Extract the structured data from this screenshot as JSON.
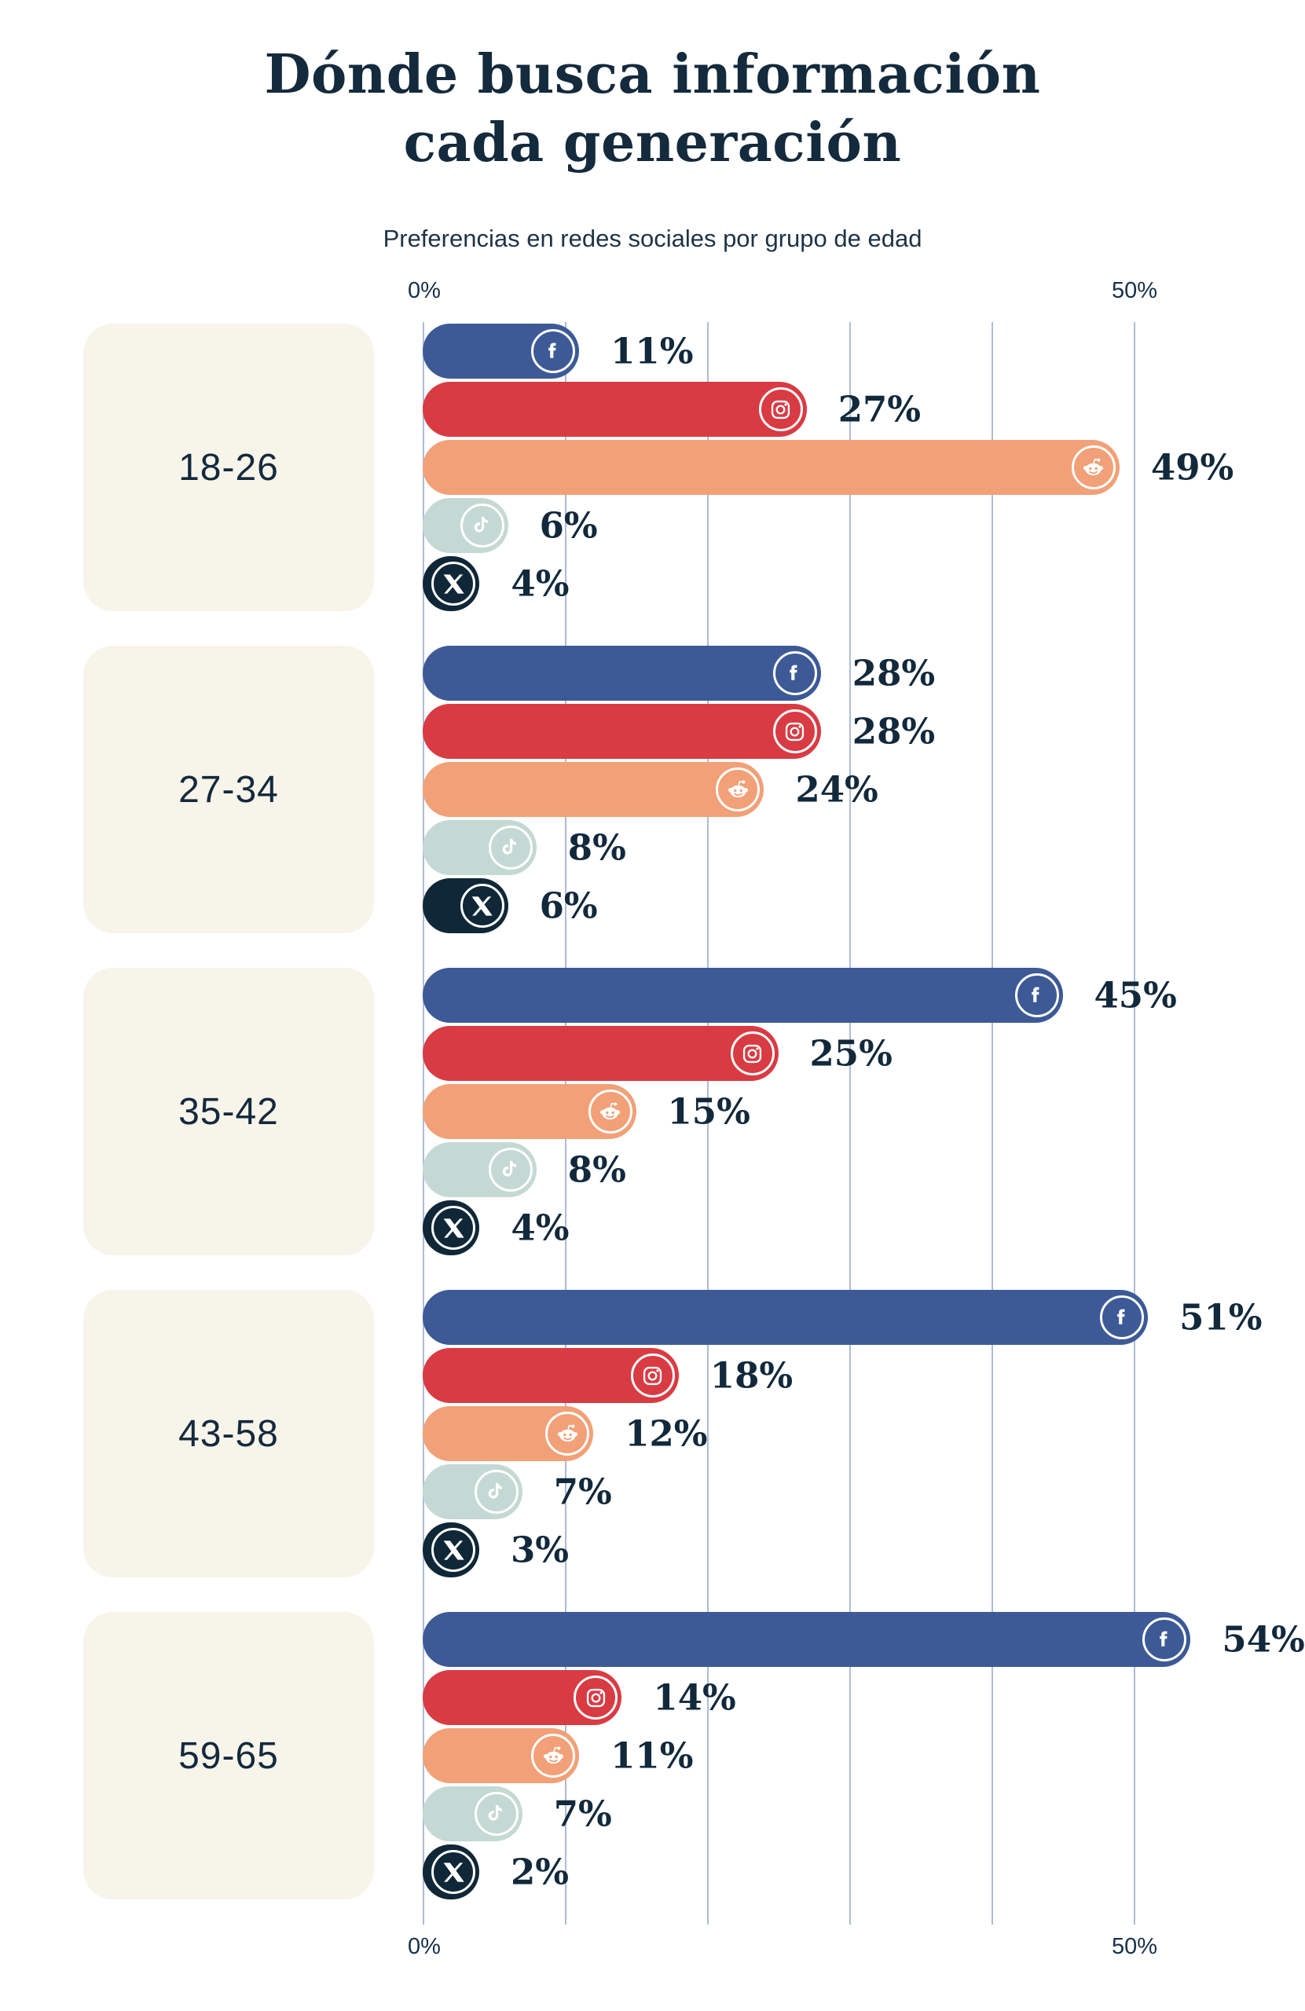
{
  "header": {
    "title_line1": "Dónde busca información",
    "title_line2": "cada generación",
    "subtitle": "Preferencias en redes sociales por grupo de edad"
  },
  "axis": {
    "min_label": "0%",
    "max_label": "50%"
  },
  "colors": {
    "background": "#ffffff",
    "title_text": "#142a3d",
    "subtitle_text": "#1d3345",
    "value_text": "#12293c",
    "age_label_text": "#13293d",
    "age_box_fill": "#f7f4ea",
    "gridline": "#adbcd6",
    "icon_ring": "#ffffff"
  },
  "chart_data": {
    "type": "bar",
    "orientation": "horizontal",
    "title": "Dónde busca información cada generación",
    "subtitle": "Preferencias en redes sociales por grupo de edad",
    "xlabel": "",
    "ylabel": "",
    "xlim": [
      0,
      50
    ],
    "x_tick_labels": [
      "0%",
      "50%"
    ],
    "gridlines_percent": [
      0,
      10,
      20,
      30,
      40,
      50
    ],
    "grid": true,
    "legend_position": "none",
    "value_suffix": "%",
    "categories": [
      "18-26",
      "27-34",
      "35-42",
      "43-58",
      "59-65"
    ],
    "series": [
      {
        "name": "Facebook",
        "icon": "facebook-icon",
        "color": "#3d5a97",
        "values": [
          11,
          28,
          45,
          51,
          54
        ]
      },
      {
        "name": "Instagram",
        "icon": "instagram-icon",
        "color": "#d93b43",
        "values": [
          27,
          28,
          25,
          18,
          14
        ]
      },
      {
        "name": "Reddit",
        "icon": "reddit-icon",
        "color": "#f2a077",
        "values": [
          49,
          24,
          15,
          12,
          11
        ]
      },
      {
        "name": "TikTok",
        "icon": "tiktok-icon",
        "color": "#c5d9d4",
        "values": [
          6,
          8,
          8,
          7,
          7
        ]
      },
      {
        "name": "X",
        "icon": "x-icon",
        "color": "#0f2736",
        "values": [
          4,
          6,
          4,
          3,
          2
        ]
      }
    ]
  }
}
